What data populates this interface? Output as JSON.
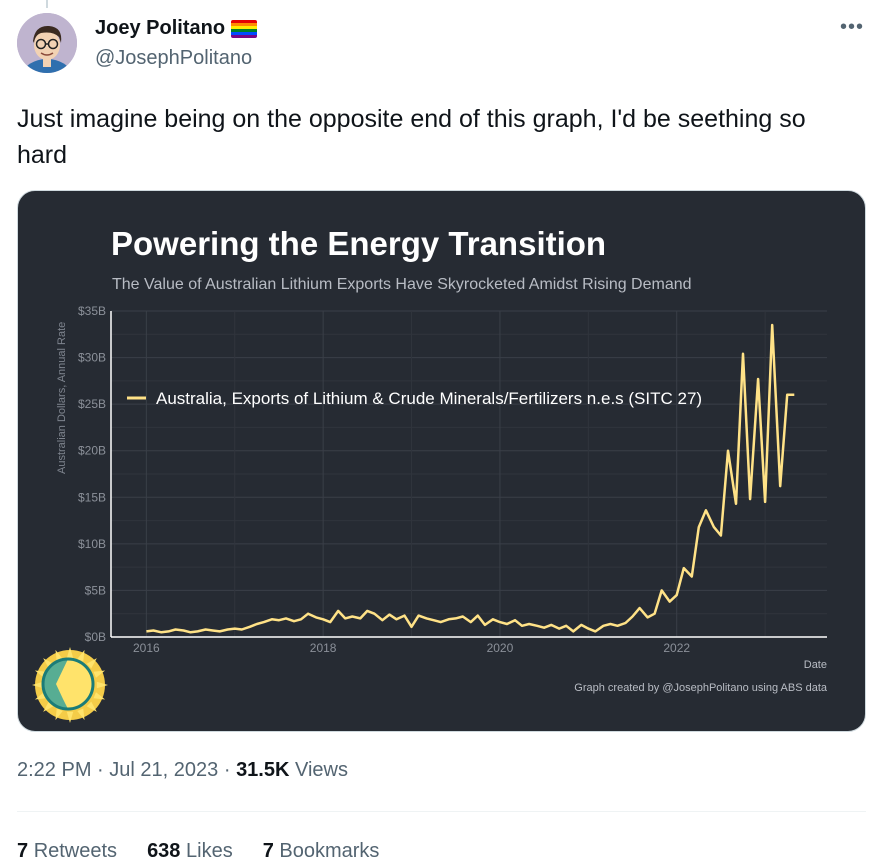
{
  "author": {
    "display_name": "Joey Politano",
    "handle": "@JosephPolitano",
    "flag_icon": "rainbow-flag-icon",
    "more_icon": "more-options-icon"
  },
  "tweet": {
    "text": "Just imagine being on the opposite end of this graph, I'd be seething so hard"
  },
  "chart_data": {
    "type": "line",
    "title": "Powering the Energy Transition",
    "subtitle": "The Value of Australian Lithium Exports Have Skyrocketed Amidst Rising Demand",
    "ylabel": "Australian Dollars, Annual Rate",
    "xlabel": "Date",
    "source": "Graph created by @JosephPolitano using ABS data",
    "y_ticks": [
      "$0B",
      "$5B",
      "$10B",
      "$15B",
      "$20B",
      "$25B",
      "$30B",
      "$35B"
    ],
    "x_ticks": [
      "2016",
      "2018",
      "2020",
      "2022"
    ],
    "ylim": [
      0,
      35
    ],
    "xlim": [
      2015.6,
      2023.7
    ],
    "legend_position": "top-left",
    "series": [
      {
        "name": "Australia, Exports of Lithium & Crude Minerals/Fertilizers n.e.s (SITC 27)",
        "color": "#ffe287",
        "x": [
          2016.0,
          2016.08,
          2016.17,
          2016.25,
          2016.33,
          2016.42,
          2016.5,
          2016.58,
          2016.67,
          2016.75,
          2016.83,
          2016.92,
          2017.0,
          2017.08,
          2017.17,
          2017.25,
          2017.33,
          2017.42,
          2017.5,
          2017.58,
          2017.67,
          2017.75,
          2017.83,
          2017.92,
          2018.0,
          2018.08,
          2018.17,
          2018.25,
          2018.33,
          2018.42,
          2018.5,
          2018.58,
          2018.67,
          2018.75,
          2018.83,
          2018.92,
          2019.0,
          2019.08,
          2019.17,
          2019.25,
          2019.33,
          2019.42,
          2019.5,
          2019.58,
          2019.67,
          2019.75,
          2019.83,
          2019.92,
          2020.0,
          2020.08,
          2020.17,
          2020.25,
          2020.33,
          2020.42,
          2020.5,
          2020.58,
          2020.67,
          2020.75,
          2020.83,
          2020.92,
          2021.0,
          2021.08,
          2021.17,
          2021.25,
          2021.33,
          2021.42,
          2021.5,
          2021.58,
          2021.67,
          2021.75,
          2021.83,
          2021.92,
          2022.0,
          2022.08,
          2022.17,
          2022.25,
          2022.33,
          2022.42,
          2022.5,
          2022.58,
          2022.67,
          2022.75,
          2022.83,
          2022.92,
          2023.0,
          2023.08,
          2023.17,
          2023.25,
          2023.33,
          2023.42,
          2023.5
        ],
        "y": [
          0.6,
          0.7,
          0.5,
          0.6,
          0.8,
          0.7,
          0.5,
          0.6,
          0.8,
          0.7,
          0.6,
          0.8,
          0.9,
          0.8,
          1.1,
          1.4,
          1.6,
          1.9,
          1.8,
          2.0,
          1.7,
          1.9,
          2.5,
          2.1,
          1.9,
          1.6,
          2.8,
          2.0,
          2.2,
          2.0,
          2.8,
          2.5,
          1.8,
          2.4,
          1.9,
          2.3,
          1.1,
          2.3,
          2.0,
          1.8,
          1.6,
          1.9,
          2.0,
          2.2,
          1.6,
          2.3,
          1.3,
          1.9,
          1.6,
          1.4,
          1.8,
          1.2,
          1.4,
          1.2,
          1.0,
          1.3,
          0.9,
          1.2,
          0.6,
          1.3,
          0.9,
          0.6,
          1.2,
          1.4,
          1.2,
          1.5,
          2.2,
          3.1,
          2.1,
          2.5,
          5.0,
          3.8,
          4.5,
          7.4,
          6.5,
          11.8,
          13.6,
          11.8,
          10.9,
          20.0,
          14.3,
          30.4,
          14.8,
          27.7,
          14.5,
          33.5,
          16.2,
          26.0,
          26.0,
          26.0,
          26.0
        ]
      }
    ]
  },
  "meta": {
    "time": "2:22 PM",
    "separator1": "·",
    "date": "Jul 21, 2023",
    "separator2": "·",
    "views_count": "31.5K",
    "views_label": "Views"
  },
  "stats": {
    "retweets_count": "7",
    "retweets_label": "Retweets",
    "likes_count": "638",
    "likes_label": "Likes",
    "bookmarks_count": "7",
    "bookmarks_label": "Bookmarks"
  }
}
